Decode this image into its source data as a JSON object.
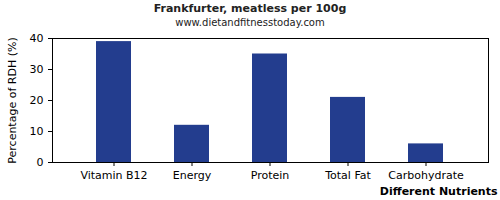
{
  "chart_data": {
    "type": "bar",
    "title": "Frankfurter, meatless per 100g",
    "subtitle": "www.dietandfitnesstoday.com",
    "x_label": "Different Nutrients",
    "y_label": "Percentage of RDH (%)",
    "categories": [
      "Vitamin B12",
      "Energy",
      "Protein",
      "Total Fat",
      "Carbohydrate"
    ],
    "values": [
      39,
      12,
      35,
      21,
      6
    ],
    "color": "#233d8e",
    "ylim": [
      0,
      40
    ],
    "yticks": [
      0,
      10,
      20,
      30,
      40
    ],
    "grid": false
  }
}
